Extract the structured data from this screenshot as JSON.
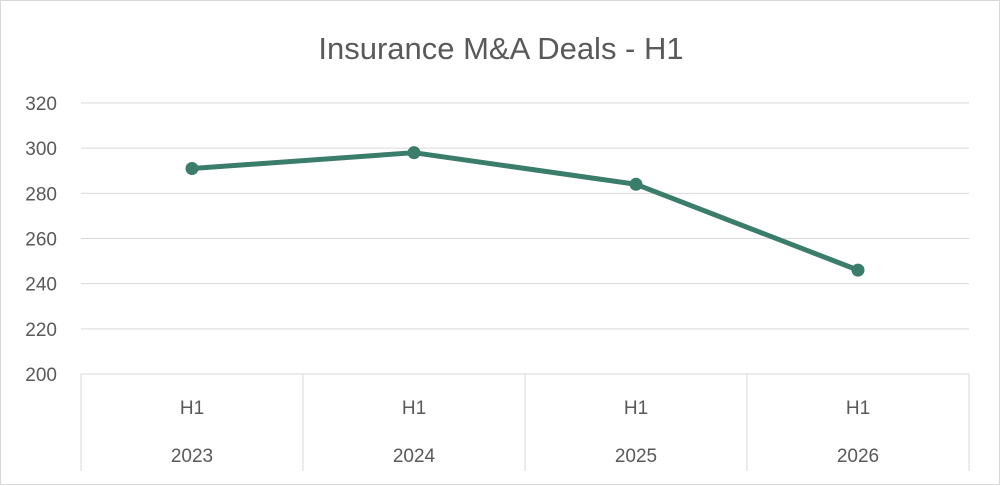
{
  "chart_data": {
    "type": "line",
    "title": "Insurance M&A Deals - H1",
    "categories": [
      {
        "period": "H1",
        "year": "2023"
      },
      {
        "period": "H1",
        "year": "2024"
      },
      {
        "period": "H1",
        "year": "2025"
      },
      {
        "period": "H1",
        "year": "2026"
      }
    ],
    "series": [
      {
        "values": [
          291,
          298,
          284,
          246
        ],
        "color": "#3a7d6b"
      }
    ],
    "ylim": [
      200,
      320
    ],
    "yticks": [
      320,
      300,
      280,
      260,
      240,
      220,
      200
    ],
    "grid": true,
    "legend": "none"
  }
}
